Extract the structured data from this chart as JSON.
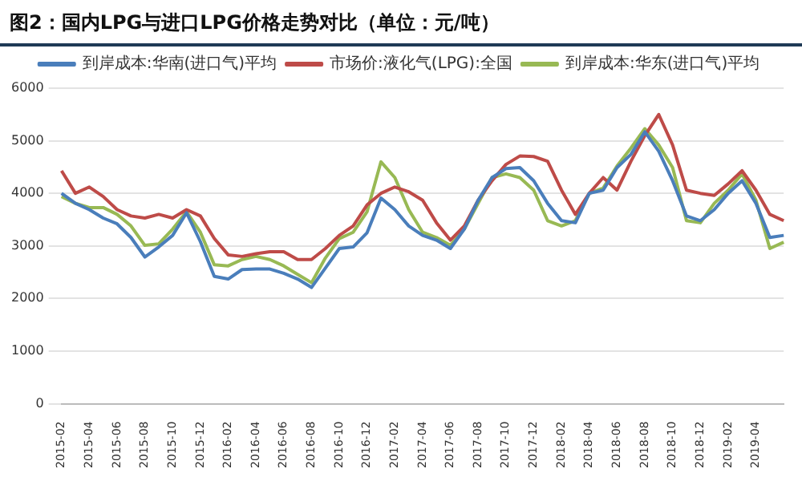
{
  "chart_data": {
    "type": "line",
    "title": "图2：国内LPG与进口LPG价格走势对比（单位：元/吨）",
    "categories": [
      "2015-02",
      null,
      "2015-04",
      null,
      "2015-06",
      null,
      "2015-08",
      null,
      "2015-10",
      null,
      "2015-12",
      null,
      "2016-02",
      null,
      "2016-04",
      null,
      "2016-06",
      null,
      "2016-08",
      null,
      "2016-10",
      null,
      "2016-12",
      null,
      "2017-02",
      null,
      "2017-04",
      null,
      "2017-06",
      null,
      "2017-08",
      null,
      "2017-10",
      null,
      "2017-12",
      null,
      "2018-02",
      null,
      "2018-04",
      null,
      "2018-06",
      null,
      "2018-08",
      null,
      "2018-10",
      null,
      "2018-12",
      null,
      "2019-02",
      null,
      "2019-04",
      null,
      null
    ],
    "series": [
      {
        "name": "到岸成本:华南(进口气)平均",
        "color": "#4a7ebb",
        "values": [
          4000,
          3810,
          3690,
          3530,
          3420,
          3160,
          2790,
          2980,
          3200,
          3630,
          3080,
          2420,
          2370,
          2550,
          2560,
          2560,
          2480,
          2370,
          2210,
          2580,
          2950,
          2980,
          3250,
          3910,
          3690,
          3380,
          3200,
          3110,
          2950,
          3320,
          3870,
          4300,
          4470,
          4490,
          4240,
          3810,
          3480,
          3440,
          4000,
          4060,
          4490,
          4740,
          5170,
          4800,
          4240,
          3570,
          3480,
          3690,
          4000,
          4240,
          3810,
          3160,
          3200
        ]
      },
      {
        "name": "市场价:液化气(LPG):全国",
        "color": "#be4b48",
        "values": [
          4430,
          4000,
          4120,
          3940,
          3690,
          3570,
          3530,
          3600,
          3530,
          3690,
          3570,
          3140,
          2830,
          2800,
          2850,
          2890,
          2890,
          2740,
          2740,
          2950,
          3200,
          3380,
          3780,
          4000,
          4120,
          4030,
          3870,
          3440,
          3110,
          3380,
          3870,
          4240,
          4550,
          4710,
          4700,
          4610,
          4060,
          3600,
          4000,
          4300,
          4060,
          4610,
          5100,
          5500,
          4920,
          4060,
          4000,
          3960,
          4180,
          4430,
          4060,
          3600,
          3480
        ]
      },
      {
        "name": "到岸成本:华东(进口气)平均",
        "color": "#98b954",
        "values": [
          3940,
          3810,
          3730,
          3730,
          3600,
          3380,
          3010,
          3040,
          3320,
          3650,
          3260,
          2640,
          2620,
          2740,
          2800,
          2740,
          2620,
          2460,
          2300,
          2770,
          3140,
          3260,
          3650,
          4600,
          4300,
          3690,
          3260,
          3160,
          3010,
          3320,
          3810,
          4300,
          4370,
          4300,
          4060,
          3480,
          3380,
          3480,
          4000,
          4100,
          4520,
          4860,
          5230,
          4920,
          4490,
          3480,
          3440,
          3810,
          4060,
          4370,
          3870,
          2950,
          3070
        ]
      }
    ],
    "ylim": [
      0,
      6000
    ],
    "yticks": [
      0,
      1000,
      2000,
      3000,
      4000,
      5000,
      6000
    ],
    "grid": "y",
    "legend": "top",
    "marker": "none",
    "line_style": "solid"
  }
}
